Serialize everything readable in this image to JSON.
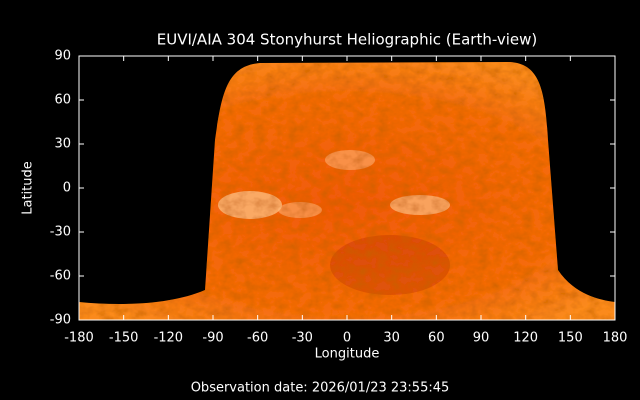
{
  "chart_data": {
    "type": "image",
    "title": "EUVI/AIA 304 Stonyhurst Heliographic (Earth-view)",
    "x_label": "Longitude",
    "y_label": "Latitude",
    "xlim": [
      -180,
      180
    ],
    "ylim": [
      -90,
      90
    ],
    "xticks": [
      -180,
      -150,
      -120,
      -90,
      -60,
      -30,
      0,
      30,
      60,
      90,
      120,
      150,
      180
    ],
    "yticks": [
      -90,
      -60,
      -30,
      0,
      30,
      60,
      90
    ],
    "footer": "Observation date: 2026/01/23 23:55:45"
  }
}
